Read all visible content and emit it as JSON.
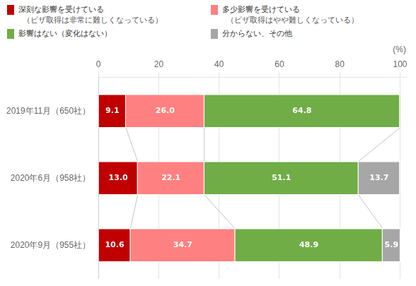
{
  "chart_data": {
    "type": "bar",
    "orientation": "horizontal",
    "stacked": true,
    "data_labels": true,
    "grid": true,
    "legend": "top",
    "xlabel": "(%)",
    "categories": [
      "2019年11月（650社）",
      "2020年6月（958社）",
      "2020年9月（955社）"
    ],
    "series": [
      {
        "name": "深刻な影響を受けている\n（ビザ取得は非常に難しくなっている）",
        "color": "#c00000",
        "values": [
          9.1,
          13.0,
          10.6
        ],
        "value_labels": [
          "9.1",
          "13.0",
          "10.6"
        ]
      },
      {
        "name": "多少影響を受けている\n（ビザ取得はやや難しくなっている）",
        "color": "#ff8080",
        "values": [
          26.0,
          22.1,
          34.7
        ],
        "value_labels": [
          "26.0",
          "22.1",
          "34.7"
        ]
      },
      {
        "name": "影響はない（変化はない）",
        "color": "#70ad47",
        "values": [
          64.8,
          51.1,
          48.9
        ],
        "value_labels": [
          "64.8",
          "51.1",
          "48.9"
        ]
      },
      {
        "name": "分からない、その他",
        "color": "#a6a6a6",
        "values": [
          0.2,
          13.7,
          5.9
        ],
        "value_labels": [
          null,
          "13.7",
          "5.9"
        ]
      }
    ],
    "xlim": [
      0,
      102
    ],
    "xticks": [
      0,
      20,
      40,
      60,
      80,
      100
    ]
  }
}
